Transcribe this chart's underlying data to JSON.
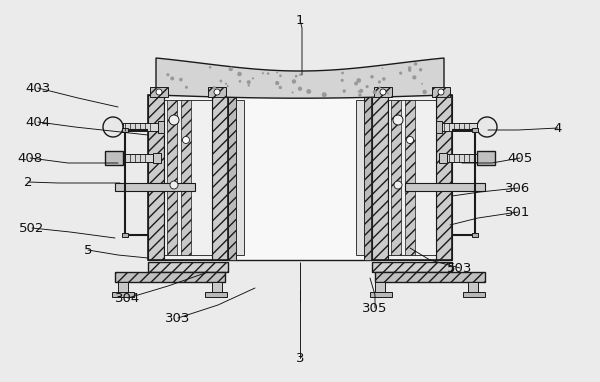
{
  "bg_color": "#ebebeb",
  "line_color": "#1a1a1a",
  "figsize": [
    6.0,
    3.82
  ],
  "dpi": 100,
  "labels": [
    [
      "1",
      300,
      20,
      302,
      28,
      302,
      75
    ],
    [
      "2",
      28,
      182,
      58,
      183,
      120,
      183
    ],
    [
      "3",
      300,
      358,
      300,
      348,
      300,
      290
    ],
    [
      "4",
      558,
      128,
      518,
      130,
      488,
      130
    ],
    [
      "403",
      38,
      88,
      78,
      98,
      118,
      107
    ],
    [
      "404",
      38,
      122,
      75,
      127,
      148,
      135
    ],
    [
      "408",
      30,
      158,
      68,
      163,
      118,
      163
    ],
    [
      "405",
      520,
      158,
      492,
      163,
      462,
      163
    ],
    [
      "306",
      518,
      188,
      480,
      192,
      452,
      196
    ],
    [
      "501",
      518,
      212,
      478,
      218,
      450,
      225
    ],
    [
      "502",
      32,
      228,
      70,
      232,
      115,
      238
    ],
    [
      "503",
      460,
      268,
      430,
      260,
      410,
      248
    ],
    [
      "5",
      88,
      250,
      118,
      255,
      148,
      258
    ],
    [
      "304",
      128,
      298,
      168,
      286,
      208,
      272
    ],
    [
      "303",
      178,
      318,
      218,
      305,
      255,
      288
    ],
    [
      "305",
      375,
      308,
      375,
      295,
      370,
      278
    ]
  ]
}
